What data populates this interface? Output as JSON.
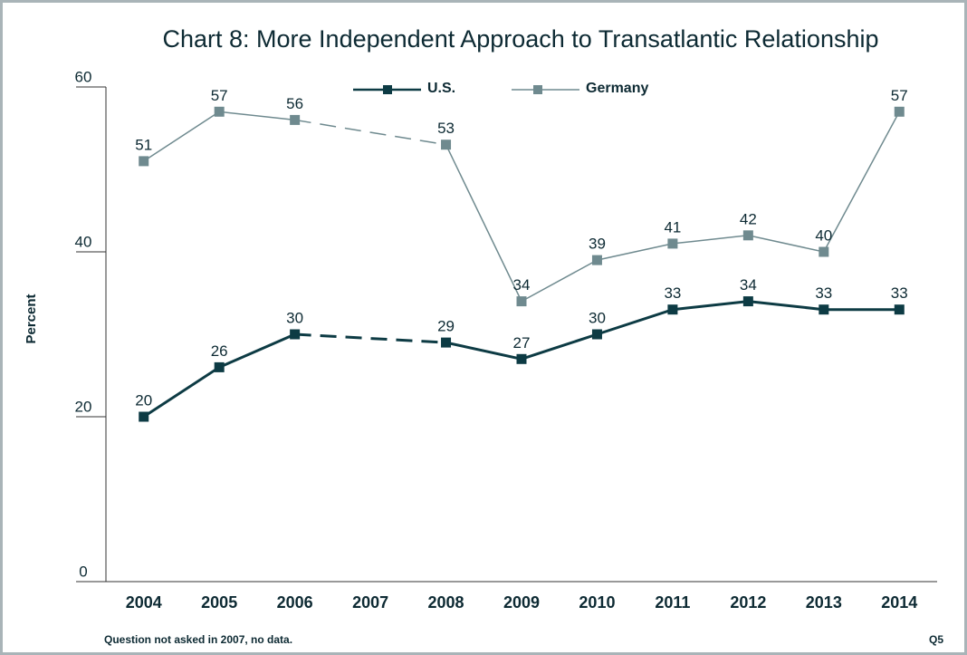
{
  "chart_data": {
    "type": "line",
    "title": "Chart 8: More Independent Approach to Transatlantic Relationship",
    "y_label": "Percent",
    "categories": [
      "2004",
      "2005",
      "2006",
      "2007",
      "2008",
      "2009",
      "2010",
      "2011",
      "2012",
      "2013",
      "2014"
    ],
    "series": [
      {
        "name": "U.S.",
        "color": "#0d3b44",
        "values": [
          20,
          26,
          30,
          null,
          29,
          27,
          30,
          33,
          34,
          33,
          33
        ]
      },
      {
        "name": "Germany",
        "color": "#6f8a8f",
        "values": [
          51,
          57,
          56,
          null,
          53,
          34,
          39,
          41,
          42,
          40,
          57
        ]
      }
    ],
    "ylim": [
      0,
      60
    ],
    "yticks": [
      0,
      20,
      40,
      60
    ],
    "legend": "top",
    "note": "Question not asked in 2007, no data.",
    "question": "Q5"
  }
}
